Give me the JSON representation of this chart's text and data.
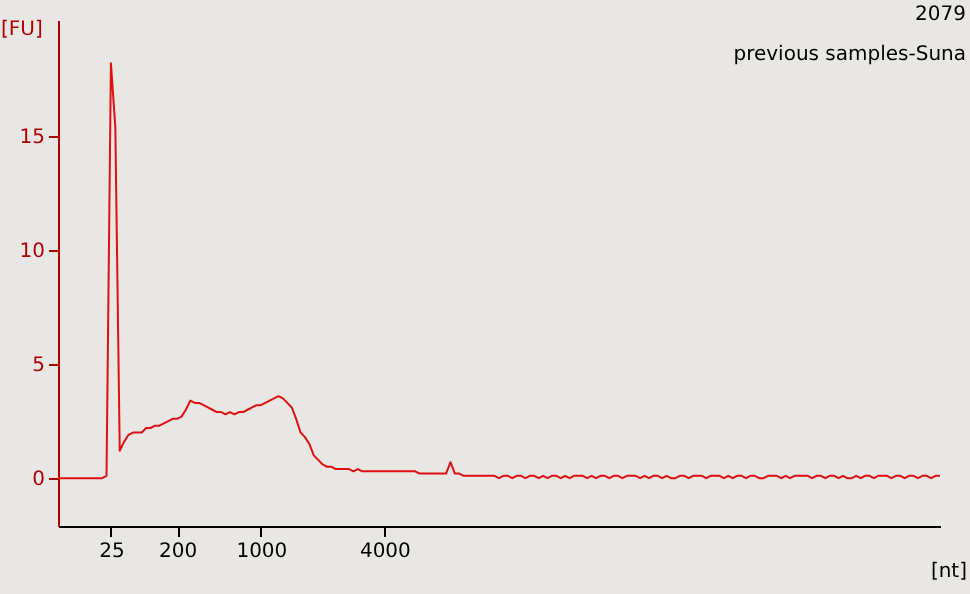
{
  "chart_data": {
    "type": "line",
    "title": "2079",
    "subtitle": "previous samples-Suna",
    "xlabel": "[nt]",
    "ylabel": "[FU]",
    "categories": [
      null,
      null,
      null,
      null,
      null,
      null,
      null,
      null,
      null,
      null,
      null,
      null,
      "25",
      null,
      null,
      null,
      null,
      null,
      null,
      null,
      null,
      null,
      null,
      null,
      null,
      null,
      null,
      "200",
      null,
      null,
      null,
      null,
      null,
      null,
      null,
      null,
      null,
      null,
      null,
      null,
      null,
      null,
      null,
      null,
      null,
      null,
      "1000",
      null,
      null,
      null,
      null,
      null,
      null,
      null,
      null,
      null,
      null,
      null,
      null,
      null,
      null,
      null,
      null,
      null,
      null,
      null,
      null,
      null,
      null,
      null,
      null,
      null,
      null,
      null,
      "4000",
      null,
      null,
      null,
      null,
      null,
      null,
      null,
      null,
      null,
      null,
      null,
      null,
      null,
      null,
      null,
      null,
      null,
      null,
      null,
      null,
      null,
      null,
      null,
      null,
      null,
      null,
      null,
      null,
      null,
      null,
      null,
      null,
      null,
      null,
      null,
      null,
      null,
      null,
      null,
      null,
      null,
      null,
      null,
      null,
      null,
      null,
      null,
      null,
      null,
      null,
      null,
      null,
      null,
      null,
      null,
      null,
      null,
      null,
      null,
      null,
      null,
      null,
      null,
      null,
      null,
      null,
      null,
      null,
      null,
      null,
      null,
      null,
      null,
      null,
      null,
      null,
      null,
      null,
      null,
      null,
      null,
      null,
      null,
      null,
      null,
      null,
      null,
      null,
      null,
      null,
      null,
      null,
      null,
      null,
      null,
      null,
      null,
      null,
      null,
      null,
      null,
      null,
      null,
      null,
      null,
      null,
      null,
      null,
      null,
      null,
      null,
      null,
      null,
      null,
      null,
      null,
      null,
      null,
      null,
      null,
      null,
      null,
      null,
      null,
      null,
      null
    ],
    "ylim": [
      -2.1,
      20.1
    ],
    "yticks": [
      0,
      5,
      10,
      15
    ],
    "grid": false,
    "marker": "none",
    "line_style": "solid",
    "series": [
      {
        "color": "#e01010",
        "values": [
          0,
          0,
          0,
          0,
          0,
          0,
          0,
          0,
          0,
          0,
          0,
          0.1,
          18.2,
          15.4,
          1.2,
          1.6,
          1.9,
          2.0,
          2.0,
          2.0,
          2.2,
          2.2,
          2.3,
          2.3,
          2.4,
          2.5,
          2.6,
          2.6,
          2.7,
          3.0,
          3.4,
          3.3,
          3.3,
          3.2,
          3.1,
          3.0,
          2.9,
          2.9,
          2.8,
          2.9,
          2.8,
          2.9,
          2.9,
          3.0,
          3.1,
          3.2,
          3.2,
          3.3,
          3.4,
          3.5,
          3.6,
          3.5,
          3.3,
          3.1,
          2.6,
          2.0,
          1.8,
          1.5,
          1.0,
          0.8,
          0.6,
          0.5,
          0.5,
          0.4,
          0.4,
          0.4,
          0.4,
          0.3,
          0.4,
          0.3,
          0.3,
          0.3,
          0.3,
          0.3,
          0.3,
          0.3,
          0.3,
          0.3,
          0.3,
          0.3,
          0.3,
          0.3,
          0.2,
          0.2,
          0.2,
          0.2,
          0.2,
          0.2,
          0.2,
          0.7,
          0.2,
          0.2,
          0.1,
          0.1,
          0.1,
          0.1,
          0.1,
          0.1,
          0.1,
          0.1,
          0,
          0.1,
          0.1,
          0,
          0.1,
          0.1,
          0,
          0.1,
          0.1,
          0,
          0.1,
          0,
          0.1,
          0.1,
          0,
          0.1,
          0,
          0.1,
          0.1,
          0.1,
          0,
          0.1,
          0,
          0.1,
          0.1,
          0,
          0.1,
          0.1,
          0,
          0.1,
          0.1,
          0.1,
          0,
          0.1,
          0,
          0.1,
          0.1,
          0,
          0.1,
          0,
          0,
          0.1,
          0.1,
          0,
          0.1,
          0.1,
          0.1,
          0,
          0.1,
          0.1,
          0.1,
          0,
          0.1,
          0,
          0.1,
          0.1,
          0,
          0.1,
          0.1,
          0,
          0,
          0.1,
          0.1,
          0.1,
          0,
          0.1,
          0,
          0.1,
          0.1,
          0.1,
          0.1,
          0,
          0.1,
          0.1,
          0,
          0.1,
          0.1,
          0,
          0.1,
          0,
          0,
          0.1,
          0,
          0.1,
          0.1,
          0,
          0.1,
          0.1,
          0.1,
          0,
          0.1,
          0.1,
          0,
          0.1,
          0.1,
          0,
          0.1,
          0.1,
          0,
          0.1,
          0.1
        ]
      }
    ]
  }
}
